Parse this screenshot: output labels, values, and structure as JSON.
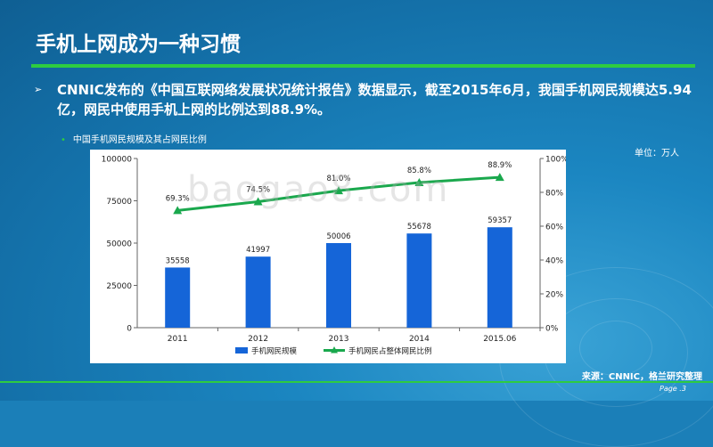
{
  "slide": {
    "title": "手机上网成为一种习惯",
    "bullet_mark": "➢",
    "bullet_text": "CNNIC发布的《中国互联网络发展状况统计报告》数据显示，截至2015年6月，我国手机网民规模达5.94亿，网民中使用手机上网的比例达到88.9%。",
    "sub_bullet": "中国手机网民规模及其占网民比例",
    "unit": "单位：万人",
    "source": "来源：CNNIC，格兰研究整理",
    "page": "Page .3",
    "watermark": "baogao8.com"
  },
  "colors": {
    "bar": "#1565d8",
    "line": "#1aa84d",
    "accent": "#2ecc40"
  },
  "chart_data": {
    "type": "bar",
    "categories": [
      "2011",
      "2012",
      "2013",
      "2014",
      "2015.06"
    ],
    "series": [
      {
        "name": "手机网民规模",
        "type": "bar",
        "axis": "left",
        "values": [
          35558,
          41997,
          50006,
          55678,
          59357
        ],
        "labels": [
          "35558",
          "41997",
          "50006",
          "55678",
          "59357"
        ]
      },
      {
        "name": "手机网民占整体网民比例",
        "type": "line",
        "axis": "right",
        "values": [
          69.3,
          74.5,
          81.0,
          85.8,
          88.9
        ],
        "labels": [
          "69.3%",
          "74.5%",
          "81.0%",
          "85.8%",
          "88.9%"
        ]
      }
    ],
    "y_left": {
      "min": 0,
      "max": 100000,
      "ticks": [
        0,
        25000,
        50000,
        75000,
        100000
      ],
      "tick_labels": [
        "0",
        "25000",
        "50000",
        "75000",
        "100000"
      ]
    },
    "y_right": {
      "min": 0,
      "max": 100,
      "ticks": [
        0,
        20,
        40,
        60,
        80,
        100
      ],
      "tick_labels": [
        "0%",
        "20%",
        "40%",
        "60%",
        "80%",
        "100%"
      ]
    },
    "legend_position": "bottom",
    "grid": false
  }
}
